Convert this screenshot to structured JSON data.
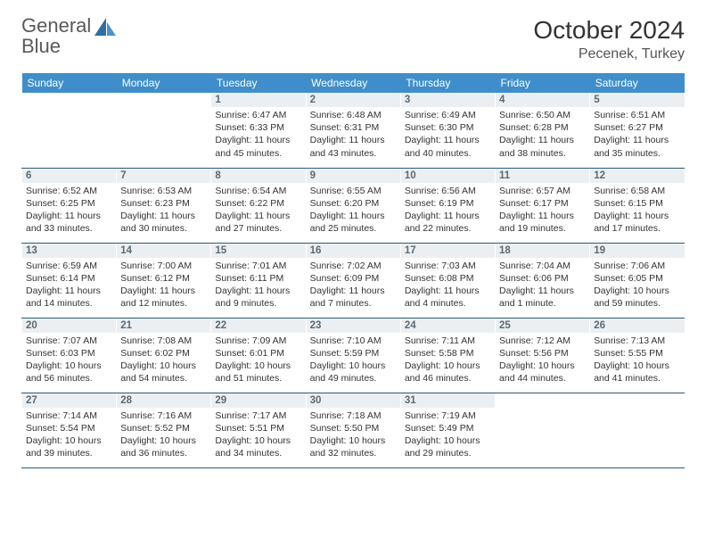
{
  "brand": {
    "word1": "General",
    "word2": "Blue"
  },
  "title": "October 2024",
  "location": "Pecenek, Turkey",
  "colors": {
    "header_bg": "#3f8ecb",
    "header_fg": "#ffffff",
    "daynum_bg": "#eceff1",
    "daynum_fg": "#5a6a75",
    "rule": "#2c5a7d",
    "logo_gray": "#5a5a5a",
    "logo_blue": "#3b7fb6"
  },
  "typography": {
    "title_fontsize": 28,
    "location_fontsize": 16,
    "header_fontsize": 12,
    "cell_fontsize": 10.5
  },
  "day_names": [
    "Sunday",
    "Monday",
    "Tuesday",
    "Wednesday",
    "Thursday",
    "Friday",
    "Saturday"
  ],
  "weeks": [
    [
      {
        "blank": true
      },
      {
        "blank": true
      },
      {
        "n": "1",
        "sr": "6:47 AM",
        "ss": "6:33 PM",
        "dl": "11 hours and 45 minutes."
      },
      {
        "n": "2",
        "sr": "6:48 AM",
        "ss": "6:31 PM",
        "dl": "11 hours and 43 minutes."
      },
      {
        "n": "3",
        "sr": "6:49 AM",
        "ss": "6:30 PM",
        "dl": "11 hours and 40 minutes."
      },
      {
        "n": "4",
        "sr": "6:50 AM",
        "ss": "6:28 PM",
        "dl": "11 hours and 38 minutes."
      },
      {
        "n": "5",
        "sr": "6:51 AM",
        "ss": "6:27 PM",
        "dl": "11 hours and 35 minutes."
      }
    ],
    [
      {
        "n": "6",
        "sr": "6:52 AM",
        "ss": "6:25 PM",
        "dl": "11 hours and 33 minutes."
      },
      {
        "n": "7",
        "sr": "6:53 AM",
        "ss": "6:23 PM",
        "dl": "11 hours and 30 minutes."
      },
      {
        "n": "8",
        "sr": "6:54 AM",
        "ss": "6:22 PM",
        "dl": "11 hours and 27 minutes."
      },
      {
        "n": "9",
        "sr": "6:55 AM",
        "ss": "6:20 PM",
        "dl": "11 hours and 25 minutes."
      },
      {
        "n": "10",
        "sr": "6:56 AM",
        "ss": "6:19 PM",
        "dl": "11 hours and 22 minutes."
      },
      {
        "n": "11",
        "sr": "6:57 AM",
        "ss": "6:17 PM",
        "dl": "11 hours and 19 minutes."
      },
      {
        "n": "12",
        "sr": "6:58 AM",
        "ss": "6:15 PM",
        "dl": "11 hours and 17 minutes."
      }
    ],
    [
      {
        "n": "13",
        "sr": "6:59 AM",
        "ss": "6:14 PM",
        "dl": "11 hours and 14 minutes."
      },
      {
        "n": "14",
        "sr": "7:00 AM",
        "ss": "6:12 PM",
        "dl": "11 hours and 12 minutes."
      },
      {
        "n": "15",
        "sr": "7:01 AM",
        "ss": "6:11 PM",
        "dl": "11 hours and 9 minutes."
      },
      {
        "n": "16",
        "sr": "7:02 AM",
        "ss": "6:09 PM",
        "dl": "11 hours and 7 minutes."
      },
      {
        "n": "17",
        "sr": "7:03 AM",
        "ss": "6:08 PM",
        "dl": "11 hours and 4 minutes."
      },
      {
        "n": "18",
        "sr": "7:04 AM",
        "ss": "6:06 PM",
        "dl": "11 hours and 1 minute."
      },
      {
        "n": "19",
        "sr": "7:06 AM",
        "ss": "6:05 PM",
        "dl": "10 hours and 59 minutes."
      }
    ],
    [
      {
        "n": "20",
        "sr": "7:07 AM",
        "ss": "6:03 PM",
        "dl": "10 hours and 56 minutes."
      },
      {
        "n": "21",
        "sr": "7:08 AM",
        "ss": "6:02 PM",
        "dl": "10 hours and 54 minutes."
      },
      {
        "n": "22",
        "sr": "7:09 AM",
        "ss": "6:01 PM",
        "dl": "10 hours and 51 minutes."
      },
      {
        "n": "23",
        "sr": "7:10 AM",
        "ss": "5:59 PM",
        "dl": "10 hours and 49 minutes."
      },
      {
        "n": "24",
        "sr": "7:11 AM",
        "ss": "5:58 PM",
        "dl": "10 hours and 46 minutes."
      },
      {
        "n": "25",
        "sr": "7:12 AM",
        "ss": "5:56 PM",
        "dl": "10 hours and 44 minutes."
      },
      {
        "n": "26",
        "sr": "7:13 AM",
        "ss": "5:55 PM",
        "dl": "10 hours and 41 minutes."
      }
    ],
    [
      {
        "n": "27",
        "sr": "7:14 AM",
        "ss": "5:54 PM",
        "dl": "10 hours and 39 minutes."
      },
      {
        "n": "28",
        "sr": "7:16 AM",
        "ss": "5:52 PM",
        "dl": "10 hours and 36 minutes."
      },
      {
        "n": "29",
        "sr": "7:17 AM",
        "ss": "5:51 PM",
        "dl": "10 hours and 34 minutes."
      },
      {
        "n": "30",
        "sr": "7:18 AM",
        "ss": "5:50 PM",
        "dl": "10 hours and 32 minutes."
      },
      {
        "n": "31",
        "sr": "7:19 AM",
        "ss": "5:49 PM",
        "dl": "10 hours and 29 minutes."
      },
      {
        "blank": true
      },
      {
        "blank": true
      }
    ]
  ],
  "labels": {
    "sunrise": "Sunrise:",
    "sunset": "Sunset:",
    "daylight": "Daylight:"
  }
}
